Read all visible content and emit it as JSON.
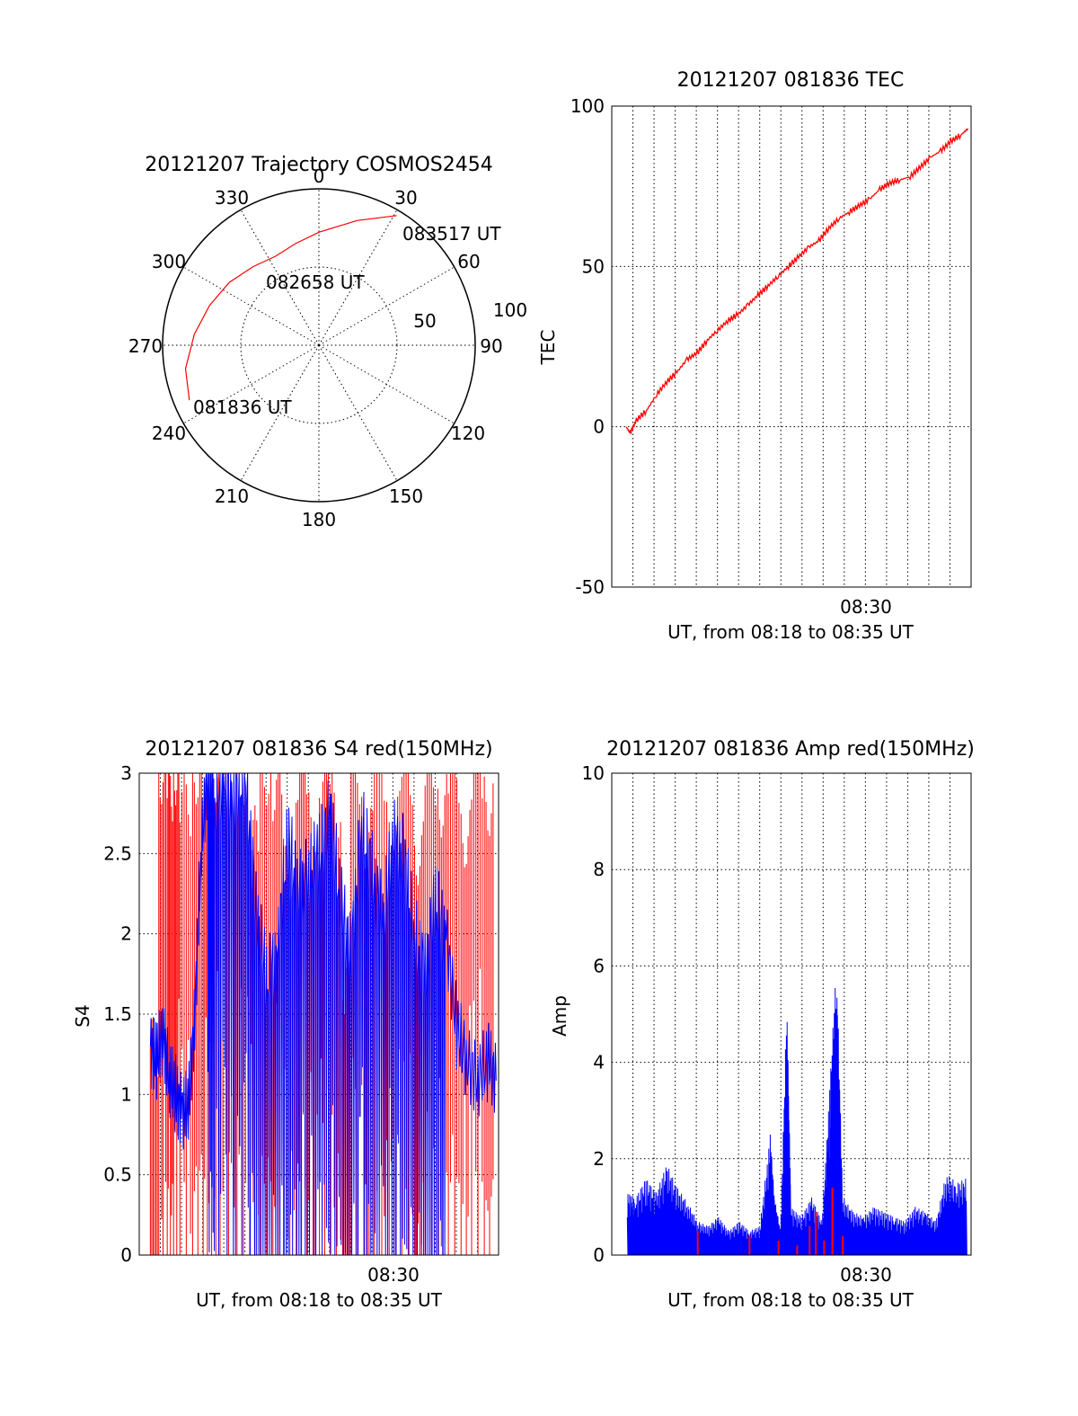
{
  "chart_data": [
    {
      "type": "polar",
      "title": "20121207 Trajectory COSMOS2454",
      "angle_labels": [
        "0",
        "30",
        "60",
        "90",
        "120",
        "150",
        "180",
        "210",
        "240",
        "270",
        "300",
        "330"
      ],
      "radial_labels": [
        "50",
        "100"
      ],
      "trajectory_points": [
        {
          "azimuth": 247,
          "zenith": 81
        },
        {
          "azimuth": 260,
          "zenith": 78
        },
        {
          "azimuth": 275,
          "zenith": 72
        },
        {
          "azimuth": 290,
          "zenith": 67
        },
        {
          "azimuth": 305,
          "zenith": 63
        },
        {
          "azimuth": 320,
          "zenith": 59
        },
        {
          "azimuth": 334,
          "zenith": 57
        },
        {
          "azimuth": 347,
          "zenith": 60
        },
        {
          "azimuth": 360,
          "zenith": 65
        },
        {
          "azimuth": 377,
          "zenith": 75
        },
        {
          "azimuth": 391,
          "zenith": 87
        }
      ],
      "annotations": [
        "081836 UT",
        "082658 UT",
        "083517 UT"
      ]
    },
    {
      "type": "line",
      "title": "20121207 081836 TEC",
      "ylabel": "TEC",
      "xlabel": "UT, from 08:18 to 08:35 UT",
      "x_tick_label": "08:30",
      "ylim": [
        -50,
        100
      ],
      "y_ticks": [
        "100",
        "50",
        "0",
        "-50"
      ],
      "series": [
        {
          "color": "#ff0000",
          "x": [
            0,
            0.2,
            0.5,
            1,
            1.5,
            2,
            2.5,
            3,
            3.5,
            4,
            4.5,
            5,
            5.5,
            6,
            6.5,
            7,
            7.5,
            8,
            8.5,
            9,
            9.5,
            10,
            10.5,
            11,
            11.5,
            12,
            12.5,
            13,
            13.5,
            14,
            14.5,
            15,
            15.5,
            16,
            16.5,
            16.85
          ],
          "values": [
            0,
            -2,
            2,
            5,
            10,
            14,
            17,
            21,
            23,
            27,
            30,
            33,
            35,
            38,
            41,
            44,
            47,
            50,
            53,
            56,
            58,
            62,
            65,
            67,
            69,
            71,
            74,
            76,
            77,
            78,
            81,
            84,
            86,
            89,
            91,
            93
          ]
        }
      ]
    },
    {
      "type": "line",
      "title": "20121207 081836 S4 red(150MHz)",
      "ylabel": "S4",
      "xlabel": "UT, from 08:18 to 08:35 UT",
      "x_tick_label": "08:30",
      "ylim": [
        0,
        3
      ],
      "y_ticks": [
        "3",
        "2.5",
        "2",
        "1.5",
        "1",
        "0.5",
        "0"
      ],
      "series": [
        {
          "color": "#ff0000",
          "x": [
            0.1,
            0.5,
            0.9,
            1.2,
            1.5,
            2.1,
            2.6,
            3.0,
            3.4,
            4.2,
            4.8,
            5.3,
            5.9,
            6.4,
            7.0,
            7.5,
            8.1,
            8.6,
            9.2,
            9.6,
            10.2,
            10.7,
            11.4,
            12.0,
            12.6,
            13.1,
            13.7,
            14.2,
            14.8,
            15.3,
            15.9,
            16.4
          ],
          "values": [
            1.3,
            3.0,
            2.9,
            3.0,
            2.8,
            3.0,
            2.7,
            3.0,
            2.9,
            3.0,
            2.6,
            3.0,
            2.9,
            2.4,
            3.0,
            2.7,
            3.0,
            2.8,
            1.7,
            3.0,
            2.6,
            3.0,
            2.7,
            3.0,
            2.5,
            3.0,
            2.8,
            3.0,
            2.6,
            3.0,
            2.8,
            3.0
          ]
        },
        {
          "color": "#0000ff",
          "x": [
            0.1,
            0.4,
            0.7,
            1.0,
            1.3,
            1.6,
            1.9,
            2.2,
            2.5,
            2.8,
            3.1,
            3.6,
            4.1,
            4.6,
            5.1,
            5.6,
            6.1,
            6.6,
            7.1,
            7.6,
            8.1,
            8.6,
            9.1,
            9.6,
            10.1,
            10.6,
            11.1,
            11.6,
            12.1,
            12.6,
            13.1,
            13.6,
            14.1,
            14.6,
            15.1,
            15.6,
            16.1,
            16.5
          ],
          "values": [
            1.3,
            1.2,
            1.4,
            1.1,
            1.0,
            0.9,
            0.9,
            1.5,
            2.5,
            3.0,
            2.8,
            3.0,
            2.9,
            3.0,
            2.2,
            1.7,
            1.9,
            2.6,
            2.3,
            2.4,
            2.5,
            2.8,
            2.2,
            1.9,
            2.7,
            2.4,
            2.1,
            2.6,
            2.5,
            2.0,
            1.8,
            2.2,
            2.0,
            1.4,
            1.2,
            1.1,
            1.2,
            1.1
          ]
        }
      ]
    },
    {
      "type": "line",
      "title": "20121207 081836 Amp red(150MHz)",
      "ylabel": "Amp",
      "xlabel": "UT, from 08:18 to 08:35 UT",
      "x_tick_label": "08:30",
      "ylim": [
        0,
        10
      ],
      "y_ticks": [
        "10",
        "8",
        "6",
        "4",
        "2",
        "0"
      ],
      "series": [
        {
          "color": "#ff0000",
          "x": [
            3.5,
            6.0,
            7.4,
            8.3,
            8.9,
            9.2,
            9.6,
            10.0,
            10.5
          ],
          "values": [
            0.5,
            0.4,
            0.3,
            0.2,
            0.6,
            0.9,
            0.3,
            1.4,
            0.4
          ]
        },
        {
          "color": "#0000ff",
          "x": [
            0.1,
            0.5,
            1.0,
            1.5,
            2.0,
            2.5,
            3.0,
            3.5,
            4.0,
            4.5,
            5.0,
            5.5,
            6.0,
            6.5,
            7.0,
            7.2,
            7.5,
            7.8,
            8.0,
            8.5,
            9.0,
            9.5,
            9.9,
            10.2,
            10.5,
            11.0,
            11.5,
            12.0,
            12.5,
            13.0,
            13.5,
            14.0,
            14.5,
            15.0,
            15.5,
            16.0,
            16.5
          ],
          "values": [
            1.3,
            1.2,
            1.6,
            1.3,
            1.9,
            1.4,
            1.1,
            0.7,
            0.6,
            0.8,
            0.5,
            0.7,
            0.5,
            0.6,
            2.5,
            1.2,
            0.5,
            5.3,
            1.0,
            0.8,
            1.2,
            0.7,
            3.7,
            6.1,
            1.2,
            0.9,
            0.8,
            1.0,
            0.9,
            0.8,
            0.7,
            1.0,
            0.9,
            0.7,
            1.7,
            1.5,
            1.6
          ]
        }
      ]
    }
  ]
}
